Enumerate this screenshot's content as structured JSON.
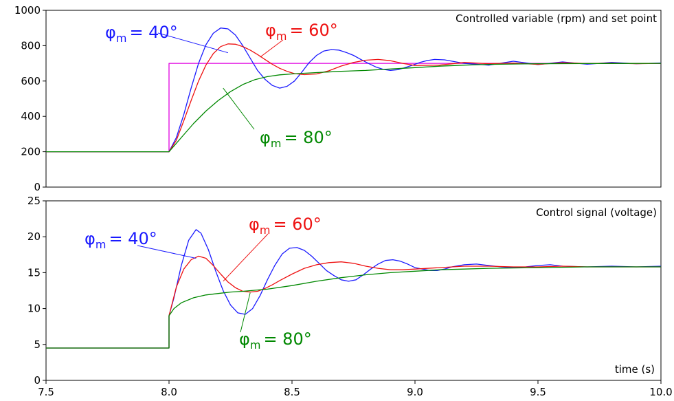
{
  "chart_data": [
    {
      "type": "line",
      "title": "Controlled variable (rpm) and set point",
      "xlim": [
        7.5,
        10.0
      ],
      "ylim": [
        0,
        1000
      ],
      "yticks": [
        0,
        200,
        400,
        600,
        800,
        1000
      ],
      "ytick_labels": [
        "0",
        "200",
        "400",
        "600",
        "800",
        "1000"
      ],
      "grid": false,
      "series": [
        {
          "color": "#e000e0",
          "x": [
            7.5,
            8.0,
            8.0,
            10.0
          ],
          "y": [
            200,
            200,
            700,
            700
          ]
        },
        {
          "color": "#1a1aff",
          "x": [
            7.5,
            8.0,
            8.03,
            8.06,
            8.09,
            8.12,
            8.15,
            8.18,
            8.21,
            8.24,
            8.27,
            8.3,
            8.33,
            8.36,
            8.39,
            8.42,
            8.45,
            8.48,
            8.51,
            8.54,
            8.57,
            8.6,
            8.63,
            8.66,
            8.69,
            8.72,
            8.75,
            8.78,
            8.81,
            8.84,
            8.87,
            8.9,
            8.93,
            8.96,
            8.99,
            9.02,
            9.05,
            9.08,
            9.12,
            9.2,
            9.3,
            9.4,
            9.5,
            9.6,
            9.7,
            9.8,
            9.9,
            10.0
          ],
          "y": [
            200,
            200,
            280,
            410,
            560,
            700,
            805,
            870,
            900,
            895,
            860,
            800,
            730,
            660,
            610,
            575,
            560,
            570,
            600,
            650,
            705,
            745,
            770,
            778,
            775,
            762,
            745,
            722,
            700,
            680,
            666,
            660,
            664,
            676,
            690,
            705,
            716,
            722,
            720,
            700,
            690,
            712,
            693,
            708,
            695,
            705,
            698,
            702
          ]
        },
        {
          "color": "#ee1111",
          "x": [
            7.5,
            8.0,
            8.03,
            8.06,
            8.09,
            8.12,
            8.15,
            8.18,
            8.21,
            8.24,
            8.27,
            8.3,
            8.33,
            8.36,
            8.39,
            8.42,
            8.45,
            8.48,
            8.51,
            8.55,
            8.6,
            8.65,
            8.7,
            8.75,
            8.8,
            8.85,
            8.9,
            8.95,
            9.0,
            9.1,
            9.2,
            9.3,
            9.4,
            9.5,
            9.6,
            9.7,
            9.8,
            9.9,
            10.0
          ],
          "y": [
            200,
            200,
            265,
            375,
            490,
            600,
            690,
            755,
            795,
            810,
            808,
            795,
            775,
            750,
            722,
            695,
            672,
            655,
            642,
            636,
            640,
            658,
            685,
            705,
            718,
            722,
            715,
            700,
            688,
            690,
            705,
            698,
            702,
            694,
            704,
            699,
            701,
            698,
            700
          ]
        },
        {
          "color": "#008800",
          "x": [
            7.5,
            8.0,
            8.05,
            8.1,
            8.15,
            8.2,
            8.25,
            8.3,
            8.35,
            8.4,
            8.45,
            8.5,
            8.55,
            8.6,
            8.7,
            8.8,
            8.9,
            9.0,
            9.1,
            9.2,
            9.3,
            9.5,
            9.7,
            10.0
          ],
          "y": [
            200,
            200,
            280,
            360,
            430,
            490,
            540,
            580,
            608,
            625,
            635,
            640,
            644,
            648,
            655,
            660,
            668,
            676,
            684,
            690,
            694,
            698,
            699,
            700
          ]
        }
      ],
      "annotations": [
        {
          "symbol": "φ",
          "subscript": "m",
          "text": "= 40°",
          "color": "#1a1aff",
          "points_to": [
            8.24,
            760
          ]
        },
        {
          "symbol": "φ",
          "subscript": "m",
          "text": "= 60°",
          "color": "#ee1111",
          "points_to": [
            8.37,
            735
          ]
        },
        {
          "symbol": "φ",
          "subscript": "m",
          "text": "= 80°",
          "color": "#008800",
          "points_to": [
            8.22,
            560
          ]
        }
      ]
    },
    {
      "type": "line",
      "title": "Control signal (voltage)",
      "xlabel": "time (s)",
      "xlim": [
        7.5,
        10.0
      ],
      "ylim": [
        0,
        25
      ],
      "xticks": [
        7.5,
        8.0,
        8.5,
        9.0,
        9.5,
        10.0
      ],
      "xtick_labels": [
        "7.5",
        "8.0",
        "8.5",
        "9.0",
        "9.5",
        "10.0"
      ],
      "yticks": [
        0,
        5,
        10,
        15,
        20,
        25
      ],
      "ytick_labels": [
        "0",
        "5",
        "10",
        "15",
        "20",
        "25"
      ],
      "grid": false,
      "series": [
        {
          "color": "#1a1aff",
          "x": [
            7.5,
            8.0,
            8.0,
            8.02,
            8.05,
            8.08,
            8.11,
            8.13,
            8.16,
            8.19,
            8.22,
            8.25,
            8.28,
            8.31,
            8.34,
            8.37,
            8.4,
            8.43,
            8.46,
            8.49,
            8.52,
            8.55,
            8.58,
            8.61,
            8.64,
            8.67,
            8.7,
            8.73,
            8.76,
            8.79,
            8.82,
            8.85,
            8.88,
            8.91,
            8.94,
            8.97,
            9.0,
            9.03,
            9.06,
            9.09,
            9.12,
            9.15,
            9.2,
            9.25,
            9.3,
            9.35,
            9.4,
            9.45,
            9.5,
            9.55,
            9.6,
            9.7,
            9.8,
            9.9,
            10.0
          ],
          "y": [
            4.5,
            4.5,
            9.0,
            11.5,
            16.0,
            19.5,
            21.0,
            20.5,
            18.2,
            15.2,
            12.5,
            10.5,
            9.4,
            9.2,
            10.0,
            11.8,
            14.0,
            16.0,
            17.6,
            18.4,
            18.5,
            18.1,
            17.3,
            16.3,
            15.3,
            14.6,
            14.0,
            13.8,
            14.0,
            14.7,
            15.5,
            16.2,
            16.7,
            16.8,
            16.6,
            16.2,
            15.7,
            15.5,
            15.3,
            15.3,
            15.5,
            15.8,
            16.1,
            16.2,
            16.0,
            15.8,
            15.7,
            15.8,
            16.0,
            16.1,
            15.9,
            15.8,
            15.9,
            15.8,
            15.9
          ]
        },
        {
          "color": "#ee1111",
          "x": [
            7.5,
            8.0,
            8.0,
            8.03,
            8.06,
            8.09,
            8.12,
            8.15,
            8.18,
            8.21,
            8.24,
            8.27,
            8.3,
            8.33,
            8.36,
            8.39,
            8.42,
            8.45,
            8.5,
            8.55,
            8.6,
            8.65,
            8.7,
            8.75,
            8.8,
            8.85,
            8.9,
            8.95,
            9.0,
            9.1,
            9.2,
            9.3,
            9.4,
            9.5,
            9.6,
            9.7,
            9.8,
            9.9,
            10.0
          ],
          "y": [
            4.5,
            4.5,
            9.0,
            13.0,
            15.5,
            16.8,
            17.3,
            17.0,
            16.0,
            14.8,
            13.7,
            12.9,
            12.4,
            12.3,
            12.4,
            12.8,
            13.3,
            13.9,
            14.8,
            15.6,
            16.1,
            16.4,
            16.5,
            16.3,
            15.9,
            15.6,
            15.4,
            15.4,
            15.5,
            15.7,
            15.9,
            15.9,
            15.8,
            15.8,
            15.9,
            15.8,
            15.8,
            15.8,
            15.8
          ]
        },
        {
          "color": "#008800",
          "x": [
            7.5,
            8.0,
            8.0,
            8.02,
            8.05,
            8.1,
            8.15,
            8.2,
            8.25,
            8.3,
            8.4,
            8.5,
            8.6,
            8.7,
            8.8,
            8.9,
            9.0,
            9.1,
            9.2,
            9.3,
            9.5,
            9.7,
            10.0
          ],
          "y": [
            4.5,
            4.5,
            9.0,
            10.0,
            10.8,
            11.5,
            11.9,
            12.1,
            12.3,
            12.4,
            12.7,
            13.2,
            13.8,
            14.3,
            14.7,
            15.0,
            15.2,
            15.4,
            15.5,
            15.6,
            15.7,
            15.8,
            15.8
          ]
        }
      ],
      "annotations": [
        {
          "symbol": "φ",
          "subscript": "m",
          "text": "= 40°",
          "color": "#1a1aff",
          "points_to": [
            8.11,
            17.0
          ]
        },
        {
          "symbol": "φ",
          "subscript": "m",
          "text": "= 60°",
          "color": "#ee1111",
          "points_to": [
            8.22,
            13.8
          ]
        },
        {
          "symbol": "φ",
          "subscript": "m",
          "text": "= 80°",
          "color": "#008800",
          "points_to": [
            8.33,
            12.2
          ]
        }
      ]
    }
  ]
}
